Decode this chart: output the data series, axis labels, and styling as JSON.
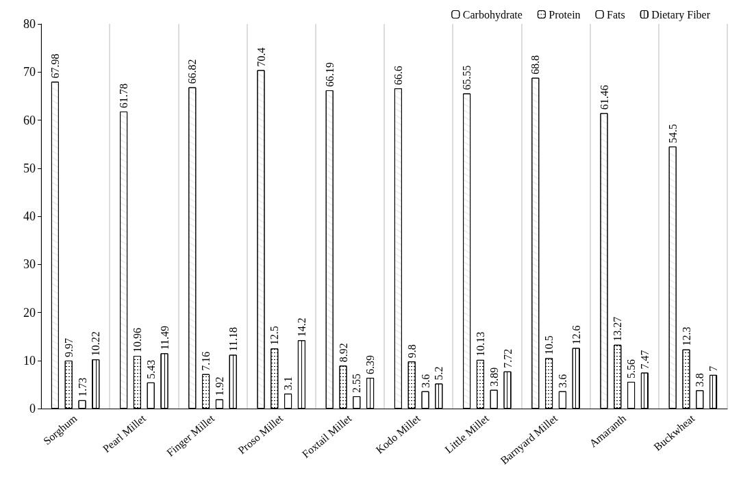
{
  "chart_data": {
    "type": "bar",
    "categories": [
      "Sorghum",
      "Pearl Millet",
      "Finger Millet",
      "Proso Millet",
      "Foxtail Millet",
      "Kodo Millet",
      "Little Millet",
      "Barnyard Millet",
      "Amaranth",
      "Buckwheat"
    ],
    "series": [
      {
        "name": "Carbohydrate",
        "color": "#ffffff",
        "values": [
          67.98,
          61.78,
          66.82,
          70.4,
          66.19,
          66.6,
          65.55,
          68.8,
          61.46,
          54.5
        ]
      },
      {
        "name": "Protein",
        "color": "#ffffff",
        "values": [
          9.97,
          10.96,
          7.16,
          12.5,
          8.92,
          9.8,
          10.13,
          10.5,
          13.27,
          12.3
        ]
      },
      {
        "name": "Fats",
        "color": "#ffffff",
        "values": [
          1.73,
          5.43,
          1.92,
          3.1,
          2.55,
          3.6,
          3.89,
          3.6,
          5.56,
          3.8
        ]
      },
      {
        "name": "Dietary Fiber",
        "color": "#ffffff",
        "values": [
          10.22,
          11.49,
          11.18,
          14.2,
          6.39,
          5.2,
          7.72,
          12.6,
          7.47,
          7
        ]
      }
    ],
    "ylim": [
      0,
      80
    ],
    "yticks": [
      0,
      10,
      20,
      30,
      40,
      50,
      60,
      70,
      80
    ],
    "grid": "x",
    "legend": "top right",
    "data_labels": true
  }
}
